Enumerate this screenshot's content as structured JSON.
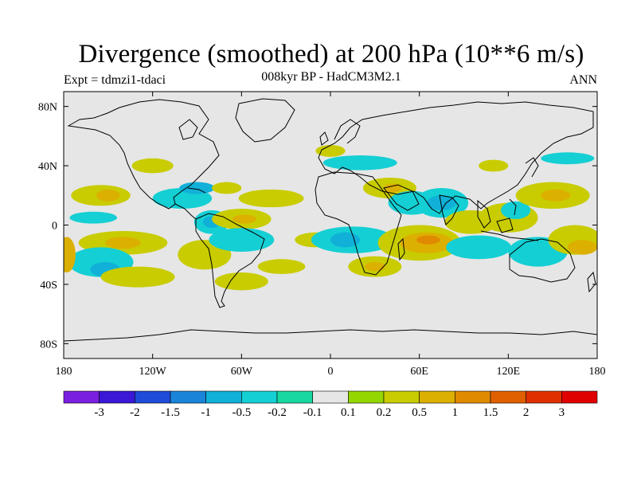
{
  "title": "Divergence (smoothed) at 200 hPa (10**6 m/s)",
  "subtitle": "008kyr BP - HadCM3M2.1",
  "left_label": "Expt = tdmzi1-tdaci",
  "right_label": "ANN",
  "chart_data": {
    "type": "heatmap",
    "projection": "cylindrical-equidistant",
    "xlim": [
      -180,
      180
    ],
    "ylim": [
      -90,
      90
    ],
    "x_ticks": [
      "180",
      "120W",
      "60W",
      "0",
      "60E",
      "120E",
      "180"
    ],
    "y_ticks": [
      "80N",
      "40N",
      "0",
      "40S",
      "80S"
    ],
    "colorbar": {
      "labels": [
        "-3",
        "-2",
        "-1.5",
        "-1",
        "-0.5",
        "-0.2",
        "-0.1",
        "0.1",
        "0.2",
        "0.5",
        "1",
        "1.5",
        "2",
        "3"
      ],
      "colors": [
        "#7a1fe0",
        "#3b17d6",
        "#1e4bd8",
        "#1a84d8",
        "#10b0d8",
        "#14cfd4",
        "#18d8a0",
        "#e6e6e6",
        "#94d600",
        "#c8cc00",
        "#dcb000",
        "#e08a00",
        "#e06000",
        "#e03000",
        "#e00000"
      ]
    },
    "regions": [
      {
        "lon": -155,
        "lat": 20,
        "rx": 20,
        "ry": 7,
        "level": "0.2"
      },
      {
        "lon": -150,
        "lat": 20,
        "rx": 8,
        "ry": 4,
        "level": "0.5"
      },
      {
        "lon": -160,
        "lat": 5,
        "rx": 16,
        "ry": 4,
        "level": "-0.2"
      },
      {
        "lon": -140,
        "lat": -12,
        "rx": 30,
        "ry": 8,
        "level": "0.2"
      },
      {
        "lon": -140,
        "lat": -12,
        "rx": 12,
        "ry": 4,
        "level": "0.5"
      },
      {
        "lon": -155,
        "lat": -25,
        "rx": 22,
        "ry": 10,
        "level": "-0.2"
      },
      {
        "lon": -152,
        "lat": -30,
        "rx": 10,
        "ry": 5,
        "level": "-0.5"
      },
      {
        "lon": -130,
        "lat": -35,
        "rx": 25,
        "ry": 7,
        "level": "0.2"
      },
      {
        "lon": -120,
        "lat": 40,
        "rx": 14,
        "ry": 5,
        "level": "0.2"
      },
      {
        "lon": -100,
        "lat": 18,
        "rx": 20,
        "ry": 7,
        "level": "-0.2"
      },
      {
        "lon": -90,
        "lat": 25,
        "rx": 12,
        "ry": 4,
        "level": "-0.5"
      },
      {
        "lon": -80,
        "lat": 2,
        "rx": 12,
        "ry": 8,
        "level": "-0.2"
      },
      {
        "lon": -80,
        "lat": 2,
        "rx": 6,
        "ry": 4,
        "level": "-0.5"
      },
      {
        "lon": -60,
        "lat": 4,
        "rx": 20,
        "ry": 7,
        "level": "0.2"
      },
      {
        "lon": -58,
        "lat": 4,
        "rx": 8,
        "ry": 3,
        "level": "0.5"
      },
      {
        "lon": -85,
        "lat": -20,
        "rx": 18,
        "ry": 10,
        "level": "0.2"
      },
      {
        "lon": -60,
        "lat": -38,
        "rx": 18,
        "ry": 6,
        "level": "0.2"
      },
      {
        "lon": -70,
        "lat": 25,
        "rx": 10,
        "ry": 4,
        "level": "0.2"
      },
      {
        "lon": -40,
        "lat": 18,
        "rx": 22,
        "ry": 6,
        "level": "0.2"
      },
      {
        "lon": -60,
        "lat": -10,
        "rx": 22,
        "ry": 8,
        "level": "-0.2"
      },
      {
        "lon": -33,
        "lat": -28,
        "rx": 16,
        "ry": 5,
        "level": "0.2"
      },
      {
        "lon": -10,
        "lat": -10,
        "rx": 14,
        "ry": 5,
        "level": "0.2"
      },
      {
        "lon": 15,
        "lat": -10,
        "rx": 28,
        "ry": 9,
        "level": "-0.2"
      },
      {
        "lon": 10,
        "lat": -10,
        "rx": 10,
        "ry": 5,
        "level": "-0.5"
      },
      {
        "lon": 30,
        "lat": -28,
        "rx": 18,
        "ry": 7,
        "level": "0.2"
      },
      {
        "lon": 30,
        "lat": -28,
        "rx": 7,
        "ry": 3,
        "level": "0.5"
      },
      {
        "lon": 20,
        "lat": 42,
        "rx": 25,
        "ry": 5,
        "level": "-0.2"
      },
      {
        "lon": 0,
        "lat": 50,
        "rx": 10,
        "ry": 4,
        "level": "0.2"
      },
      {
        "lon": 40,
        "lat": 25,
        "rx": 18,
        "ry": 7,
        "level": "0.2"
      },
      {
        "lon": 42,
        "lat": 25,
        "rx": 6,
        "ry": 3,
        "level": "0.5"
      },
      {
        "lon": 55,
        "lat": 15,
        "rx": 16,
        "ry": 8,
        "level": "-0.2"
      },
      {
        "lon": 60,
        "lat": -12,
        "rx": 28,
        "ry": 12,
        "level": "0.2"
      },
      {
        "lon": 65,
        "lat": -12,
        "rx": 18,
        "ry": 7,
        "level": "0.5"
      },
      {
        "lon": 66,
        "lat": -10,
        "rx": 8,
        "ry": 3,
        "level": "1"
      },
      {
        "lon": 75,
        "lat": 15,
        "rx": 18,
        "ry": 10,
        "level": "-0.2"
      },
      {
        "lon": 75,
        "lat": 15,
        "rx": 10,
        "ry": 5,
        "level": "-0.5"
      },
      {
        "lon": 95,
        "lat": 2,
        "rx": 18,
        "ry": 8,
        "level": "0.2"
      },
      {
        "lon": 100,
        "lat": -15,
        "rx": 22,
        "ry": 8,
        "level": "-0.2"
      },
      {
        "lon": 110,
        "lat": 40,
        "rx": 10,
        "ry": 4,
        "level": "0.2"
      },
      {
        "lon": 120,
        "lat": 5,
        "rx": 20,
        "ry": 10,
        "level": "0.2"
      },
      {
        "lon": 125,
        "lat": 10,
        "rx": 10,
        "ry": 6,
        "level": "-0.2"
      },
      {
        "lon": 150,
        "lat": 20,
        "rx": 25,
        "ry": 9,
        "level": "0.2"
      },
      {
        "lon": 152,
        "lat": 20,
        "rx": 10,
        "ry": 4,
        "level": "0.5"
      },
      {
        "lon": 160,
        "lat": 45,
        "rx": 18,
        "ry": 4,
        "level": "-0.2"
      },
      {
        "lon": 140,
        "lat": -18,
        "rx": 20,
        "ry": 10,
        "level": "-0.2"
      },
      {
        "lon": 165,
        "lat": -10,
        "rx": 18,
        "ry": 10,
        "level": "0.2"
      },
      {
        "lon": 170,
        "lat": -15,
        "rx": 10,
        "ry": 5,
        "level": "0.5"
      },
      {
        "lon": -178,
        "lat": -20,
        "rx": 6,
        "ry": 12,
        "level": "0.5"
      }
    ]
  }
}
